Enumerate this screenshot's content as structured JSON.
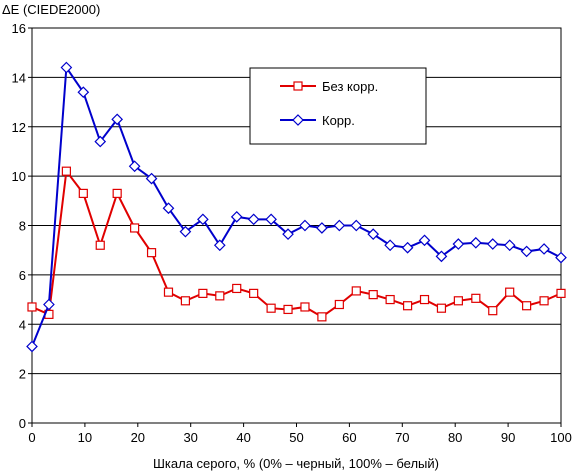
{
  "chart_data": {
    "type": "line",
    "title": "",
    "ylabel": "ΔE (CIEDE2000)",
    "xlabel": "Шкала серого, % (0% – черный, 100% – белый)",
    "xlim": [
      0,
      100
    ],
    "ylim": [
      0,
      16
    ],
    "xticks": [
      0,
      10,
      20,
      30,
      40,
      50,
      60,
      70,
      80,
      90,
      100
    ],
    "yticks": [
      0,
      2,
      4,
      6,
      8,
      10,
      12,
      14,
      16
    ],
    "grid": "horizontal",
    "legend_position": "top-right",
    "x": [
      0,
      3.2,
      6.5,
      9.7,
      12.9,
      16.1,
      19.4,
      22.6,
      25.8,
      29.0,
      32.3,
      35.5,
      38.7,
      41.9,
      45.2,
      48.4,
      51.6,
      54.8,
      58.1,
      61.3,
      64.5,
      67.7,
      71.0,
      74.2,
      77.4,
      80.6,
      83.9,
      87.1,
      90.3,
      93.5,
      96.8,
      100
    ],
    "series": [
      {
        "name": "Без корр.",
        "color": "#e00000",
        "marker": "square",
        "values": [
          4.7,
          4.4,
          10.2,
          9.3,
          7.2,
          9.3,
          7.9,
          6.9,
          5.3,
          4.95,
          5.25,
          5.15,
          5.45,
          5.25,
          4.65,
          4.6,
          4.7,
          4.3,
          4.8,
          5.35,
          5.2,
          5.0,
          4.75,
          5.0,
          4.65,
          4.95,
          5.05,
          4.55,
          5.3,
          4.75,
          4.95,
          5.25
        ]
      },
      {
        "name": "Корр.",
        "color": "#0000cc",
        "marker": "diamond",
        "values": [
          3.1,
          4.8,
          14.4,
          13.4,
          11.4,
          12.3,
          10.4,
          9.9,
          8.7,
          7.75,
          8.25,
          7.2,
          8.35,
          8.25,
          8.25,
          7.65,
          8.0,
          7.9,
          8.0,
          8.0,
          7.65,
          7.2,
          7.1,
          7.4,
          6.75,
          7.25,
          7.3,
          7.25,
          7.2,
          6.95,
          7.05,
          6.7
        ]
      }
    ]
  }
}
